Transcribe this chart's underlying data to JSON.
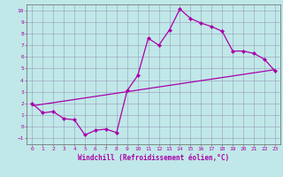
{
  "title": "",
  "xlabel": "Windchill (Refroidissement éolien,°C)",
  "bg_color": "#c0e8e8",
  "line_color": "#aa00aa",
  "grid_color": "#9999bb",
  "spine_color": "#666666",
  "xlim": [
    -0.5,
    23.5
  ],
  "ylim": [
    -1.5,
    10.5
  ],
  "xticks": [
    0,
    1,
    2,
    3,
    4,
    5,
    6,
    7,
    8,
    9,
    10,
    11,
    12,
    13,
    14,
    15,
    16,
    17,
    18,
    19,
    20,
    21,
    22,
    23
  ],
  "yticks": [
    -1,
    0,
    1,
    2,
    3,
    4,
    5,
    6,
    7,
    8,
    9,
    10
  ],
  "main_x": [
    0,
    1,
    2,
    3,
    4,
    5,
    6,
    7,
    8,
    9,
    10,
    11,
    12,
    13,
    14,
    15,
    16,
    17,
    18,
    19,
    20,
    21,
    22,
    23
  ],
  "main_y": [
    2.0,
    1.2,
    1.3,
    0.7,
    0.6,
    -0.7,
    -0.3,
    -0.2,
    -0.5,
    3.1,
    4.4,
    7.6,
    7.0,
    8.3,
    10.1,
    9.3,
    8.9,
    8.6,
    8.2,
    6.5,
    6.5,
    6.3,
    5.8,
    4.8
  ],
  "trend_x": [
    0,
    23
  ],
  "trend_y": [
    1.8,
    4.9
  ],
  "marker": "D",
  "markersize": 2.0,
  "linewidth": 0.9,
  "tick_fontsize": 4.5,
  "xlabel_fontsize": 5.5
}
